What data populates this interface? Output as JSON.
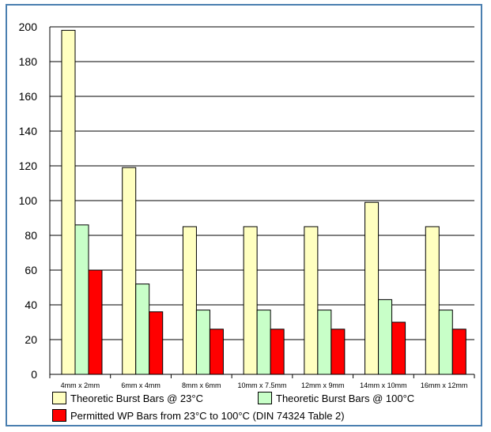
{
  "chart_data": {
    "type": "bar",
    "categories": [
      "4mm x 2mm",
      "6mm x 4mm",
      "8mm x 6mm",
      "10mm x 7.5mm",
      "12mm x 9mm",
      "14mm x 10mm",
      "16mm x 12mm"
    ],
    "series": [
      {
        "name": "Theoretic Burst Bars @ 23°C",
        "color": "#ffffc0",
        "values": [
          198,
          119,
          85,
          85,
          85,
          99,
          85
        ]
      },
      {
        "name": "Theoretic Burst Bars @ 100°C",
        "color": "#c8ffc8",
        "values": [
          86,
          52,
          37,
          37,
          37,
          43,
          37
        ]
      },
      {
        "name": "Permitted WP Bars from 23°C to 100°C (DIN 74324 Table 2)",
        "color": "#ff0000",
        "values": [
          60,
          36,
          26,
          26,
          26,
          30,
          26
        ]
      }
    ],
    "ylim": [
      0,
      200
    ],
    "yticks": [
      0,
      20,
      40,
      60,
      80,
      100,
      120,
      140,
      160,
      180,
      200
    ],
    "grid": true,
    "legend_position": "bottom"
  }
}
